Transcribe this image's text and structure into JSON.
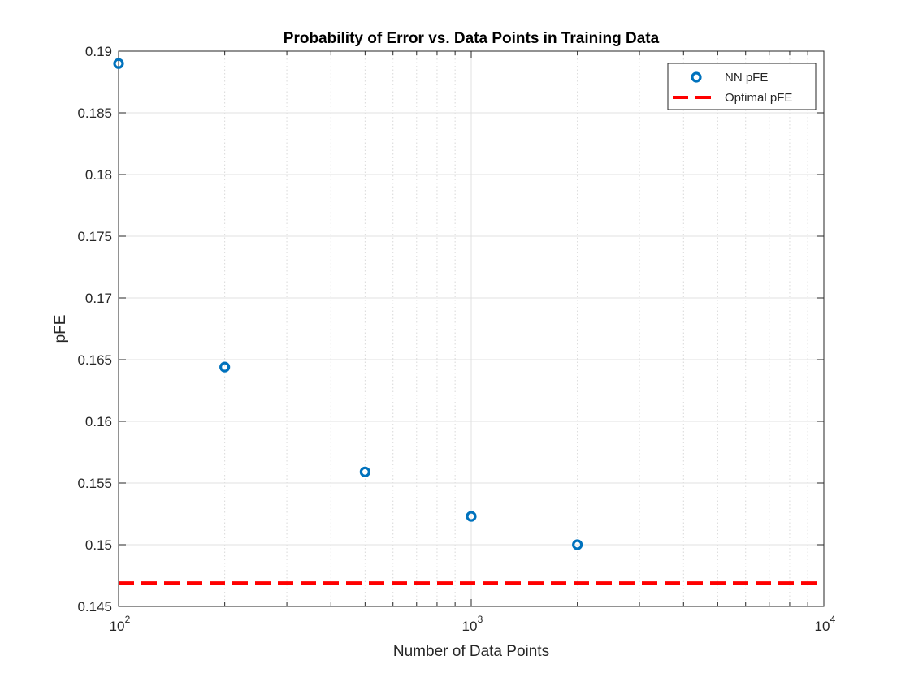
{
  "chart_data": {
    "type": "scatter",
    "title": "Probability of Error vs. Data Points in Training Data",
    "xlabel": "Number of Data Points",
    "ylabel": "pFE",
    "xscale": "log",
    "xlim": [
      100,
      10000
    ],
    "ylim": [
      0.145,
      0.19
    ],
    "grid": true,
    "legend_position": "top-right",
    "x_ticks": [
      {
        "base": "10",
        "exp": "2",
        "value": 100
      },
      {
        "base": "10",
        "exp": "3",
        "value": 1000
      },
      {
        "base": "10",
        "exp": "4",
        "value": 10000
      }
    ],
    "y_ticks": [
      {
        "label": "0.145",
        "value": 0.145
      },
      {
        "label": "0.15",
        "value": 0.15
      },
      {
        "label": "0.155",
        "value": 0.155
      },
      {
        "label": "0.16",
        "value": 0.16
      },
      {
        "label": "0.165",
        "value": 0.165
      },
      {
        "label": "0.17",
        "value": 0.17
      },
      {
        "label": "0.175",
        "value": 0.175
      },
      {
        "label": "0.18",
        "value": 0.18
      },
      {
        "label": "0.185",
        "value": 0.185
      },
      {
        "label": "0.19",
        "value": 0.19
      }
    ],
    "series": [
      {
        "name": "NN pFE",
        "style": "markers",
        "marker": "circle",
        "color": "#0072BD",
        "x": [
          100,
          200,
          500,
          1000,
          2000
        ],
        "y": [
          0.189,
          0.1644,
          0.1559,
          0.1523,
          0.15
        ]
      },
      {
        "name": "Optimal pFE",
        "style": "dashed-line",
        "color": "#FF0000",
        "y": 0.1469
      }
    ]
  }
}
